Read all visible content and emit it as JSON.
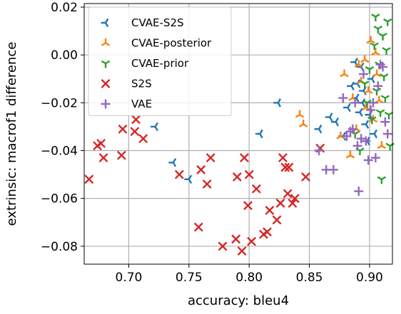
{
  "chart_data": {
    "type": "scatter",
    "xlabel": "accuracy: bleu4",
    "ylabel": "extrinsic: macrof1 difference",
    "xlim": [
      0.663,
      0.919
    ],
    "ylim": [
      -0.0875,
      0.0215
    ],
    "xticks": [
      0.7,
      0.75,
      0.8,
      0.85,
      0.9
    ],
    "xtick_labels": [
      "0.70",
      "0.75",
      "0.80",
      "0.85",
      "0.90"
    ],
    "yticks": [
      -0.08,
      -0.06,
      -0.04,
      -0.02,
      0.0,
      0.02
    ],
    "ytick_labels": [
      "−0.08",
      "−0.06",
      "−0.04",
      "−0.02",
      "0.00",
      "0.02"
    ],
    "grid": true,
    "legend_position": "top-left",
    "series": [
      {
        "name": "CVAE-S2S",
        "color": "#1f77b4",
        "marker": "tri-left",
        "points": [
          [
            0.722,
            -0.03
          ],
          [
            0.737,
            -0.045
          ],
          [
            0.75,
            -0.052
          ],
          [
            0.809,
            -0.033
          ],
          [
            0.824,
            -0.02
          ],
          [
            0.858,
            -0.031
          ],
          [
            0.867,
            -0.026
          ],
          [
            0.872,
            -0.028
          ],
          [
            0.878,
            -0.034
          ],
          [
            0.882,
            -0.022
          ],
          [
            0.885,
            -0.013
          ],
          [
            0.888,
            -0.003
          ],
          [
            0.889,
            -0.018
          ],
          [
            0.89,
            -0.012
          ],
          [
            0.892,
            -0.024
          ],
          [
            0.893,
            -0.005
          ],
          [
            0.894,
            -0.02
          ],
          [
            0.895,
            -0.015
          ],
          [
            0.897,
            -0.029
          ],
          [
            0.898,
            -0.036
          ],
          [
            0.9,
            -0.025
          ],
          [
            0.902,
            -0.01
          ],
          [
            0.904,
            -0.033
          ]
        ]
      },
      {
        "name": "CVAE-posterior",
        "color": "#ff7f0e",
        "marker": "tri-up",
        "points": [
          [
            0.842,
            -0.025
          ],
          [
            0.845,
            -0.029
          ],
          [
            0.876,
            -0.034
          ],
          [
            0.879,
            -0.008
          ],
          [
            0.884,
            -0.042
          ],
          [
            0.886,
            -0.018
          ],
          [
            0.889,
            -0.031
          ],
          [
            0.891,
            -0.004
          ],
          [
            0.893,
            -0.011
          ],
          [
            0.896,
            -0.002
          ],
          [
            0.897,
            -0.022
          ],
          [
            0.899,
            -0.015
          ],
          [
            0.901,
            0.006
          ],
          [
            0.903,
            -0.027
          ],
          [
            0.905,
            0.001
          ],
          [
            0.906,
            -0.008
          ],
          [
            0.908,
            -0.019
          ],
          [
            0.91,
            -0.038
          ]
        ]
      },
      {
        "name": "CVAE-prior",
        "color": "#2ca02c",
        "marker": "tri-down",
        "points": [
          [
            0.888,
            -0.033
          ],
          [
            0.892,
            -0.04
          ],
          [
            0.896,
            -0.012
          ],
          [
            0.898,
            -0.02
          ],
          [
            0.9,
            -0.006
          ],
          [
            0.902,
            -0.027
          ],
          [
            0.904,
            0.004
          ],
          [
            0.905,
            0.016
          ],
          [
            0.906,
            -0.015
          ],
          [
            0.907,
            0.011
          ],
          [
            0.908,
            -0.004
          ],
          [
            0.909,
            -0.024
          ],
          [
            0.91,
            -0.052
          ],
          [
            0.911,
            0.008
          ],
          [
            0.912,
            -0.009
          ],
          [
            0.913,
            -0.018
          ],
          [
            0.914,
            0.002
          ],
          [
            0.915,
            0.014
          ],
          [
            0.916,
            -0.025
          ],
          [
            0.917,
            -0.038
          ]
        ]
      },
      {
        "name": "S2S",
        "color": "#d62728",
        "marker": "x",
        "points": [
          [
            0.667,
            -0.052
          ],
          [
            0.674,
            -0.038
          ],
          [
            0.677,
            -0.037
          ],
          [
            0.679,
            -0.043
          ],
          [
            0.694,
            -0.042
          ],
          [
            0.695,
            -0.031
          ],
          [
            0.705,
            -0.032
          ],
          [
            0.706,
            -0.027
          ],
          [
            0.712,
            -0.035
          ],
          [
            0.742,
            -0.05
          ],
          [
            0.758,
            -0.072
          ],
          [
            0.76,
            -0.048
          ],
          [
            0.765,
            -0.054
          ],
          [
            0.768,
            -0.043
          ],
          [
            0.778,
            -0.08
          ],
          [
            0.789,
            -0.077
          ],
          [
            0.79,
            -0.051
          ],
          [
            0.794,
            -0.082
          ],
          [
            0.796,
            -0.043
          ],
          [
            0.799,
            -0.063
          ],
          [
            0.8,
            -0.05
          ],
          [
            0.802,
            -0.078
          ],
          [
            0.806,
            -0.056
          ],
          [
            0.812,
            -0.075
          ],
          [
            0.815,
            -0.074
          ],
          [
            0.817,
            -0.065
          ],
          [
            0.823,
            -0.069
          ],
          [
            0.826,
            -0.062
          ],
          [
            0.828,
            -0.043
          ],
          [
            0.83,
            -0.047
          ],
          [
            0.832,
            -0.058
          ],
          [
            0.833,
            -0.047
          ],
          [
            0.836,
            -0.062
          ],
          [
            0.838,
            -0.06
          ],
          [
            0.847,
            -0.051
          ],
          [
            0.859,
            -0.039
          ]
        ]
      },
      {
        "name": "VAE",
        "color": "#9467bd",
        "marker": "plus",
        "points": [
          [
            0.858,
            -0.04
          ],
          [
            0.864,
            -0.048
          ],
          [
            0.87,
            -0.048
          ],
          [
            0.878,
            -0.018
          ],
          [
            0.881,
            -0.034
          ],
          [
            0.884,
            -0.032
          ],
          [
            0.886,
            -0.031
          ],
          [
            0.888,
            -0.02
          ],
          [
            0.89,
            -0.038
          ],
          [
            0.891,
            -0.057
          ],
          [
            0.893,
            -0.035
          ],
          [
            0.895,
            -0.008
          ],
          [
            0.897,
            -0.036
          ],
          [
            0.899,
            -0.044
          ],
          [
            0.901,
            -0.023
          ],
          [
            0.903,
            -0.02
          ],
          [
            0.905,
            -0.043
          ],
          [
            0.907,
            -0.013
          ],
          [
            0.909,
            -0.004
          ],
          [
            0.911,
            -0.005
          ],
          [
            0.913,
            -0.028
          ],
          [
            0.915,
            -0.033
          ]
        ]
      }
    ]
  }
}
